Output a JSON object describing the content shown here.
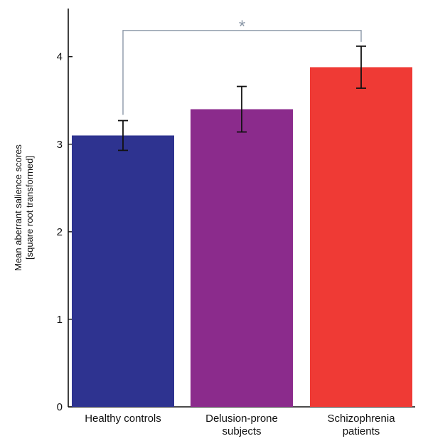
{
  "chart_data": {
    "type": "bar",
    "categories": [
      [
        "Healthy controls"
      ],
      [
        "Delusion-prone",
        "subjects"
      ],
      [
        "Schizophrenia",
        "patients"
      ]
    ],
    "values": [
      3.1,
      3.4,
      3.88
    ],
    "errors": [
      0.17,
      0.26,
      0.24
    ],
    "colors": [
      "#2e3390",
      "#8b2b8c",
      "#ef3a35"
    ],
    "ylabel": [
      "Mean aberrant salience scores",
      "[square root transformed]"
    ],
    "ylim": [
      0,
      4.55
    ],
    "yticks": [
      0,
      1,
      2,
      3,
      4
    ],
    "significance": {
      "from": 0,
      "to": 2,
      "label": "*",
      "level": 4.3,
      "color": "#8b98a8"
    }
  }
}
